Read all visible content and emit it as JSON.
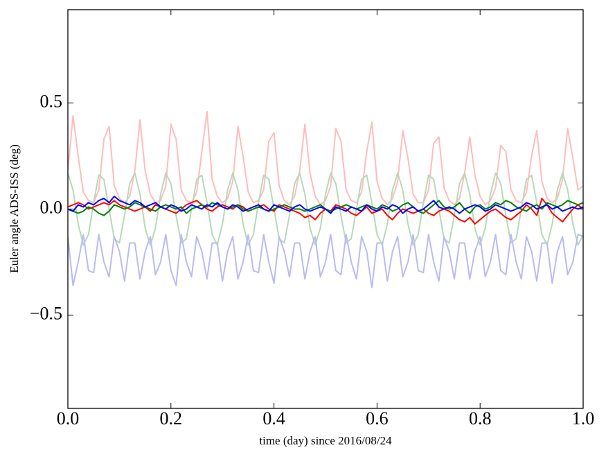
{
  "chart_data": {
    "type": "line",
    "xlabel": "time (day) since 2016/08/24",
    "ylabel": "Euler angle ADS-ISS (deg)",
    "xlim": [
      0,
      1
    ],
    "ylim": [
      -0.94,
      0.94
    ],
    "xticks": [
      {
        "value": 0,
        "label": "0.0"
      },
      {
        "value": 0.2,
        "label": "0.2"
      },
      {
        "value": 0.4,
        "label": "0.4"
      },
      {
        "value": 0.6,
        "label": "0.6"
      },
      {
        "value": 0.8,
        "label": "0.8"
      },
      {
        "value": 1,
        "label": "1.0"
      }
    ],
    "yticks": [
      {
        "value": -0.5,
        "label": "−0.5"
      },
      {
        "value": 0,
        "label": "0.0"
      },
      {
        "value": 0.5,
        "label": "0.5"
      }
    ],
    "x": [
      0,
      0.01,
      0.02,
      0.03,
      0.04,
      0.05,
      0.06,
      0.07,
      0.08,
      0.09,
      0.1,
      0.11,
      0.12,
      0.13,
      0.14,
      0.15,
      0.16,
      0.17,
      0.18,
      0.19,
      0.2,
      0.21,
      0.22,
      0.23,
      0.24,
      0.25,
      0.26,
      0.27,
      0.28,
      0.29,
      0.3,
      0.31,
      0.32,
      0.33,
      0.34,
      0.35,
      0.36,
      0.37,
      0.38,
      0.39,
      0.4,
      0.41,
      0.42,
      0.43,
      0.44,
      0.45,
      0.46,
      0.47,
      0.48,
      0.49,
      0.5,
      0.51,
      0.52,
      0.53,
      0.54,
      0.55,
      0.56,
      0.57,
      0.58,
      0.59,
      0.6,
      0.61,
      0.62,
      0.63,
      0.64,
      0.65,
      0.66,
      0.67,
      0.68,
      0.69,
      0.7,
      0.71,
      0.72,
      0.73,
      0.74,
      0.75,
      0.76,
      0.77,
      0.78,
      0.79,
      0.8,
      0.81,
      0.82,
      0.83,
      0.84,
      0.85,
      0.86,
      0.87,
      0.88,
      0.89,
      0.9,
      0.91,
      0.92,
      0.93,
      0.94,
      0.95,
      0.96,
      0.97,
      0.98,
      0.99,
      1
    ],
    "series": [
      {
        "color": "#ffbcbc",
        "values": [
          0.18,
          0.44,
          0.25,
          0.08,
          0.04,
          0.03,
          0.09,
          0.33,
          0.39,
          0.11,
          0.05,
          0.03,
          0.06,
          0.18,
          0.42,
          0.18,
          0.07,
          0.03,
          0.04,
          0.11,
          0.4,
          0.33,
          0.09,
          0.04,
          0.03,
          0.08,
          0.27,
          0.46,
          0.14,
          0.06,
          0.03,
          0.05,
          0.13,
          0.39,
          0.25,
          0.08,
          0.03,
          0.04,
          0.09,
          0.32,
          0.36,
          0.11,
          0.04,
          0.02,
          0.06,
          0.18,
          0.4,
          0.17,
          0.06,
          0.02,
          0.04,
          0.11,
          0.38,
          0.32,
          0.09,
          0.04,
          0.03,
          0.08,
          0.27,
          0.41,
          0.13,
          0.05,
          0.02,
          0.05,
          0.13,
          0.37,
          0.24,
          0.07,
          0.03,
          0.03,
          0.09,
          0.31,
          0.34,
          0.1,
          0.04,
          0.02,
          0.05,
          0.17,
          0.34,
          0.16,
          0.06,
          0.02,
          0.04,
          0.1,
          0.3,
          0.27,
          0.09,
          0.04,
          0.03,
          0.08,
          0.25,
          0.37,
          0.13,
          0.05,
          0.03,
          0.05,
          0.14,
          0.38,
          0.24,
          0.09,
          0.11
        ]
      },
      {
        "color": "#b5dab5",
        "values": [
          0.17,
          0.09,
          -0.07,
          -0.17,
          -0.12,
          0.03,
          0.16,
          0.14,
          0,
          -0.14,
          -0.16,
          -0.03,
          0.12,
          0.17,
          0.07,
          -0.09,
          -0.17,
          -0.09,
          0.07,
          0.17,
          0.12,
          -0.03,
          -0.16,
          -0.14,
          0,
          0.14,
          0.16,
          0.03,
          -0.12,
          -0.17,
          -0.07,
          0.09,
          0.17,
          0.09,
          -0.07,
          -0.17,
          -0.12,
          0.03,
          0.16,
          0.14,
          0,
          -0.14,
          -0.16,
          -0.03,
          0.12,
          0.17,
          0.07,
          -0.09,
          -0.17,
          -0.09,
          0.07,
          0.17,
          0.12,
          -0.03,
          -0.16,
          -0.14,
          0,
          0.14,
          0.16,
          0.03,
          -0.12,
          -0.17,
          -0.07,
          0.09,
          0.17,
          0.09,
          -0.07,
          -0.17,
          -0.12,
          0.03,
          0.16,
          0.14,
          0,
          -0.14,
          -0.16,
          -0.03,
          0.12,
          0.17,
          0.07,
          -0.09,
          -0.17,
          -0.09,
          0.07,
          0.17,
          0.12,
          -0.03,
          -0.16,
          -0.14,
          0,
          0.14,
          0.16,
          0.03,
          -0.12,
          -0.17,
          -0.07,
          0.09,
          0.17,
          0.09,
          -0.07,
          -0.17,
          -0.12
        ]
      },
      {
        "color": "#babaf5",
        "values": [
          -0.13,
          -0.36,
          -0.25,
          -0.12,
          -0.29,
          -0.3,
          -0.12,
          -0.25,
          -0.32,
          -0.13,
          -0.2,
          -0.34,
          -0.16,
          -0.16,
          -0.33,
          -0.2,
          -0.13,
          -0.31,
          -0.25,
          -0.12,
          -0.29,
          -0.36,
          -0.12,
          -0.25,
          -0.32,
          -0.13,
          -0.2,
          -0.33,
          -0.16,
          -0.16,
          -0.34,
          -0.2,
          -0.13,
          -0.33,
          -0.25,
          -0.12,
          -0.29,
          -0.3,
          -0.12,
          -0.25,
          -0.35,
          -0.13,
          -0.2,
          -0.32,
          -0.16,
          -0.16,
          -0.33,
          -0.2,
          -0.13,
          -0.32,
          -0.25,
          -0.12,
          -0.29,
          -0.31,
          -0.12,
          -0.25,
          -0.33,
          -0.13,
          -0.2,
          -0.37,
          -0.16,
          -0.16,
          -0.34,
          -0.2,
          -0.13,
          -0.32,
          -0.25,
          -0.12,
          -0.29,
          -0.3,
          -0.12,
          -0.25,
          -0.34,
          -0.13,
          -0.2,
          -0.33,
          -0.16,
          -0.16,
          -0.33,
          -0.2,
          -0.13,
          -0.32,
          -0.25,
          -0.12,
          -0.29,
          -0.31,
          -0.12,
          -0.25,
          -0.33,
          -0.13,
          -0.2,
          -0.34,
          -0.16,
          -0.16,
          -0.35,
          -0.2,
          -0.13,
          -0.31,
          -0.25,
          -0.12,
          -0.13
        ]
      },
      {
        "color": "#ff0000",
        "values": [
          0.01,
          0.02,
          0.03,
          0.02,
          0,
          0.01,
          0.02,
          0.03,
          0.02,
          0.04,
          0.02,
          0.01,
          0,
          -0.01,
          0,
          0.01,
          -0.01,
          0.02,
          0.01,
          0,
          -0.01,
          -0.02,
          0,
          0.02,
          0.03,
          0.04,
          0.02,
          0,
          -0.01,
          0.01,
          0.02,
          0.01,
          0,
          0.02,
          0.01,
          -0.01,
          0,
          0.01,
          0.02,
          0,
          -0.01,
          0.02,
          0.01,
          0,
          -0.01,
          -0.02,
          -0.04,
          -0.03,
          -0.05,
          -0.02,
          0,
          -0.01,
          0.02,
          0.01,
          0,
          -0.02,
          -0.03,
          -0.01,
          0.01,
          -0.02,
          -0.01,
          0,
          -0.03,
          -0.05,
          -0.02,
          0,
          -0.01,
          -0.02,
          -0.01,
          0,
          -0.02,
          -0.03,
          -0.01,
          0,
          -0.01,
          -0.03,
          -0.05,
          -0.06,
          -0.04,
          -0.07,
          -0.05,
          -0.03,
          -0.01,
          0,
          -0.02,
          -0.04,
          -0.05,
          -0.03,
          -0.01,
          0.02,
          0,
          -0.03,
          0.05,
          0.02,
          -0.02,
          -0.04,
          -0.06,
          -0.03,
          0,
          0.02,
          0
        ]
      },
      {
        "color": "#008000",
        "values": [
          0,
          -0.01,
          -0.02,
          -0.01,
          0.01,
          0,
          -0.02,
          -0.03,
          -0.01,
          0.02,
          0.01,
          0,
          0.01,
          0.03,
          0.02,
          0.01,
          0,
          -0.01,
          0.01,
          0.02,
          0.01,
          0,
          0.01,
          -0.02,
          0,
          0.01,
          0.02,
          0.01,
          0.03,
          0.02,
          0.01,
          0,
          0.01,
          0.02,
          0,
          -0.01,
          0,
          0.01,
          0,
          -0.01,
          0,
          0.01,
          0.02,
          0.01,
          0,
          0,
          -0.01,
          0,
          0.01,
          0.02,
          0,
          -0.01,
          0,
          0.01,
          0.02,
          0.01,
          0,
          0.01,
          0.02,
          0.01,
          0,
          0.02,
          0.01,
          -0.01,
          0,
          0.02,
          0.03,
          0.01,
          -0.01,
          -0.02,
          0,
          0.02,
          0.04,
          0.01,
          0,
          0.01,
          0.03,
          0,
          -0.02,
          0.01,
          0.02,
          0,
          0.01,
          0.03,
          0.02,
          0.04,
          0.03,
          0.01,
          0,
          -0.01,
          0.01,
          0.02,
          0,
          0.03,
          0.02,
          0.01,
          0.02,
          0.04,
          0.03,
          0.02,
          0.03
        ]
      },
      {
        "color": "#0000ff",
        "values": [
          0,
          -0.01,
          0.02,
          0.01,
          0.03,
          0.02,
          0.04,
          0.05,
          0.03,
          0.06,
          0.04,
          0.03,
          0.02,
          0.04,
          0.03,
          0.01,
          0.02,
          0.03,
          0.01,
          0,
          0.02,
          0.01,
          -0.01,
          0,
          0.02,
          0.01,
          0,
          0.02,
          0.01,
          0.03,
          0.01,
          0,
          0.02,
          0.01,
          -0.01,
          0,
          0.01,
          0.02,
          0,
          -0.01,
          0.02,
          0.01,
          0,
          -0.01,
          0.01,
          0.02,
          0,
          -0.01,
          0,
          0.01,
          0,
          -0.02,
          0.01,
          0,
          -0.01,
          0.01,
          0,
          -0.01,
          0.02,
          0,
          -0.01,
          0.01,
          0,
          0.02,
          0.01,
          -0.02,
          0,
          0.01,
          -0.01,
          0,
          0.02,
          0.04,
          0.01,
          0,
          0.01,
          0,
          -0.02,
          0,
          0.01,
          0.02,
          0.01,
          -0.01,
          0,
          0.02,
          0.01,
          0,
          -0.01,
          0,
          0.01,
          0.03,
          0.02,
          0,
          0.01,
          0.02,
          0,
          0.01,
          -0.01,
          0,
          0.01,
          0,
          0.01
        ]
      }
    ]
  }
}
